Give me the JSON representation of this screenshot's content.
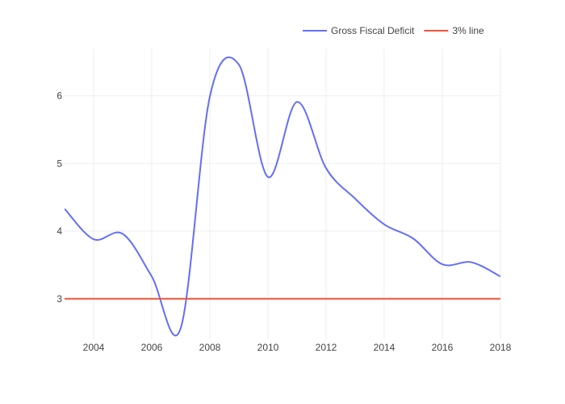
{
  "chart_data": {
    "type": "line",
    "title": "",
    "xlabel": "",
    "ylabel": "",
    "xlim": [
      2003,
      2018
    ],
    "ylim": [
      2.4,
      6.7
    ],
    "x_ticks": [
      2004,
      2006,
      2008,
      2010,
      2012,
      2014,
      2016,
      2018
    ],
    "y_ticks": [
      3,
      4,
      5,
      6
    ],
    "x_tick_labels": [
      "2004",
      "2006",
      "2008",
      "2010",
      "2012",
      "2014",
      "2016",
      "2018"
    ],
    "y_tick_labels": [
      "3",
      "4",
      "5",
      "6"
    ],
    "grid": true,
    "legend_position": "top-right",
    "series": [
      {
        "name": "Gross Fiscal Deficit",
        "color": "#636efa",
        "smooth": true,
        "x": [
          2003,
          2004,
          2005,
          2006,
          2007,
          2008,
          2009,
          2010,
          2011,
          2012,
          2013,
          2014,
          2015,
          2016,
          2017,
          2018
        ],
        "y": [
          4.33,
          3.88,
          3.96,
          3.33,
          2.57,
          5.99,
          6.46,
          4.8,
          5.91,
          4.93,
          4.48,
          4.1,
          3.89,
          3.51,
          3.54,
          3.33
        ]
      },
      {
        "name": "3% line",
        "color": "#ef553b",
        "smooth": false,
        "x": [
          2003,
          2018
        ],
        "y": [
          3,
          3
        ]
      }
    ]
  }
}
